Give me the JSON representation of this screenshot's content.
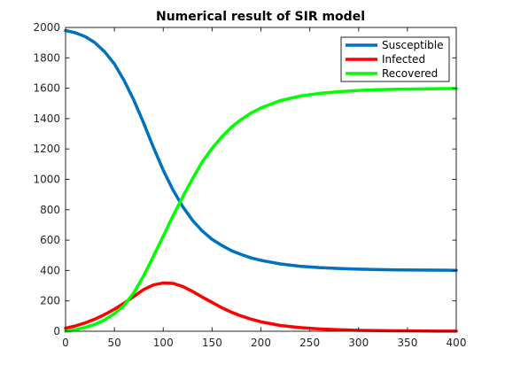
{
  "chart_data": {
    "type": "line",
    "title": "Numerical result of SIR model",
    "xlabel": "",
    "ylabel": "",
    "xlim": [
      0,
      400
    ],
    "ylim": [
      0,
      2000
    ],
    "xticks": [
      0,
      50,
      100,
      150,
      200,
      250,
      300,
      350,
      400
    ],
    "yticks": [
      0,
      200,
      400,
      600,
      800,
      1000,
      1200,
      1400,
      1600,
      1800,
      2000
    ],
    "grid": false,
    "legend_position": "top-right",
    "x": [
      0,
      10,
      20,
      30,
      40,
      50,
      60,
      70,
      80,
      90,
      100,
      110,
      120,
      130,
      140,
      150,
      160,
      170,
      180,
      190,
      200,
      220,
      240,
      260,
      280,
      300,
      320,
      340,
      360,
      380,
      400
    ],
    "series": [
      {
        "name": "Susceptible",
        "color": "#0072BD",
        "values": [
          1980,
          1965,
          1940,
          1900,
          1840,
          1760,
          1650,
          1520,
          1370,
          1210,
          1060,
          930,
          820,
          730,
          660,
          605,
          565,
          530,
          505,
          483,
          467,
          443,
          428,
          419,
          413,
          409,
          406,
          404,
          403,
          402,
          401
        ]
      },
      {
        "name": "Infected",
        "color": "#FF0000",
        "values": [
          20,
          35,
          55,
          80,
          110,
          145,
          185,
          230,
          275,
          305,
          318,
          315,
          295,
          262,
          225,
          190,
          155,
          125,
          100,
          80,
          62,
          38,
          24,
          15,
          10,
          6,
          4,
          3,
          2,
          1,
          1
        ]
      },
      {
        "name": "Recovered",
        "color": "#00FF00",
        "values": [
          0,
          10,
          25,
          45,
          75,
          115,
          170,
          255,
          365,
          495,
          625,
          760,
          885,
          1005,
          1115,
          1205,
          1280,
          1345,
          1395,
          1437,
          1470,
          1519,
          1548,
          1566,
          1577,
          1585,
          1590,
          1593,
          1595,
          1597,
          1598
        ]
      }
    ]
  }
}
